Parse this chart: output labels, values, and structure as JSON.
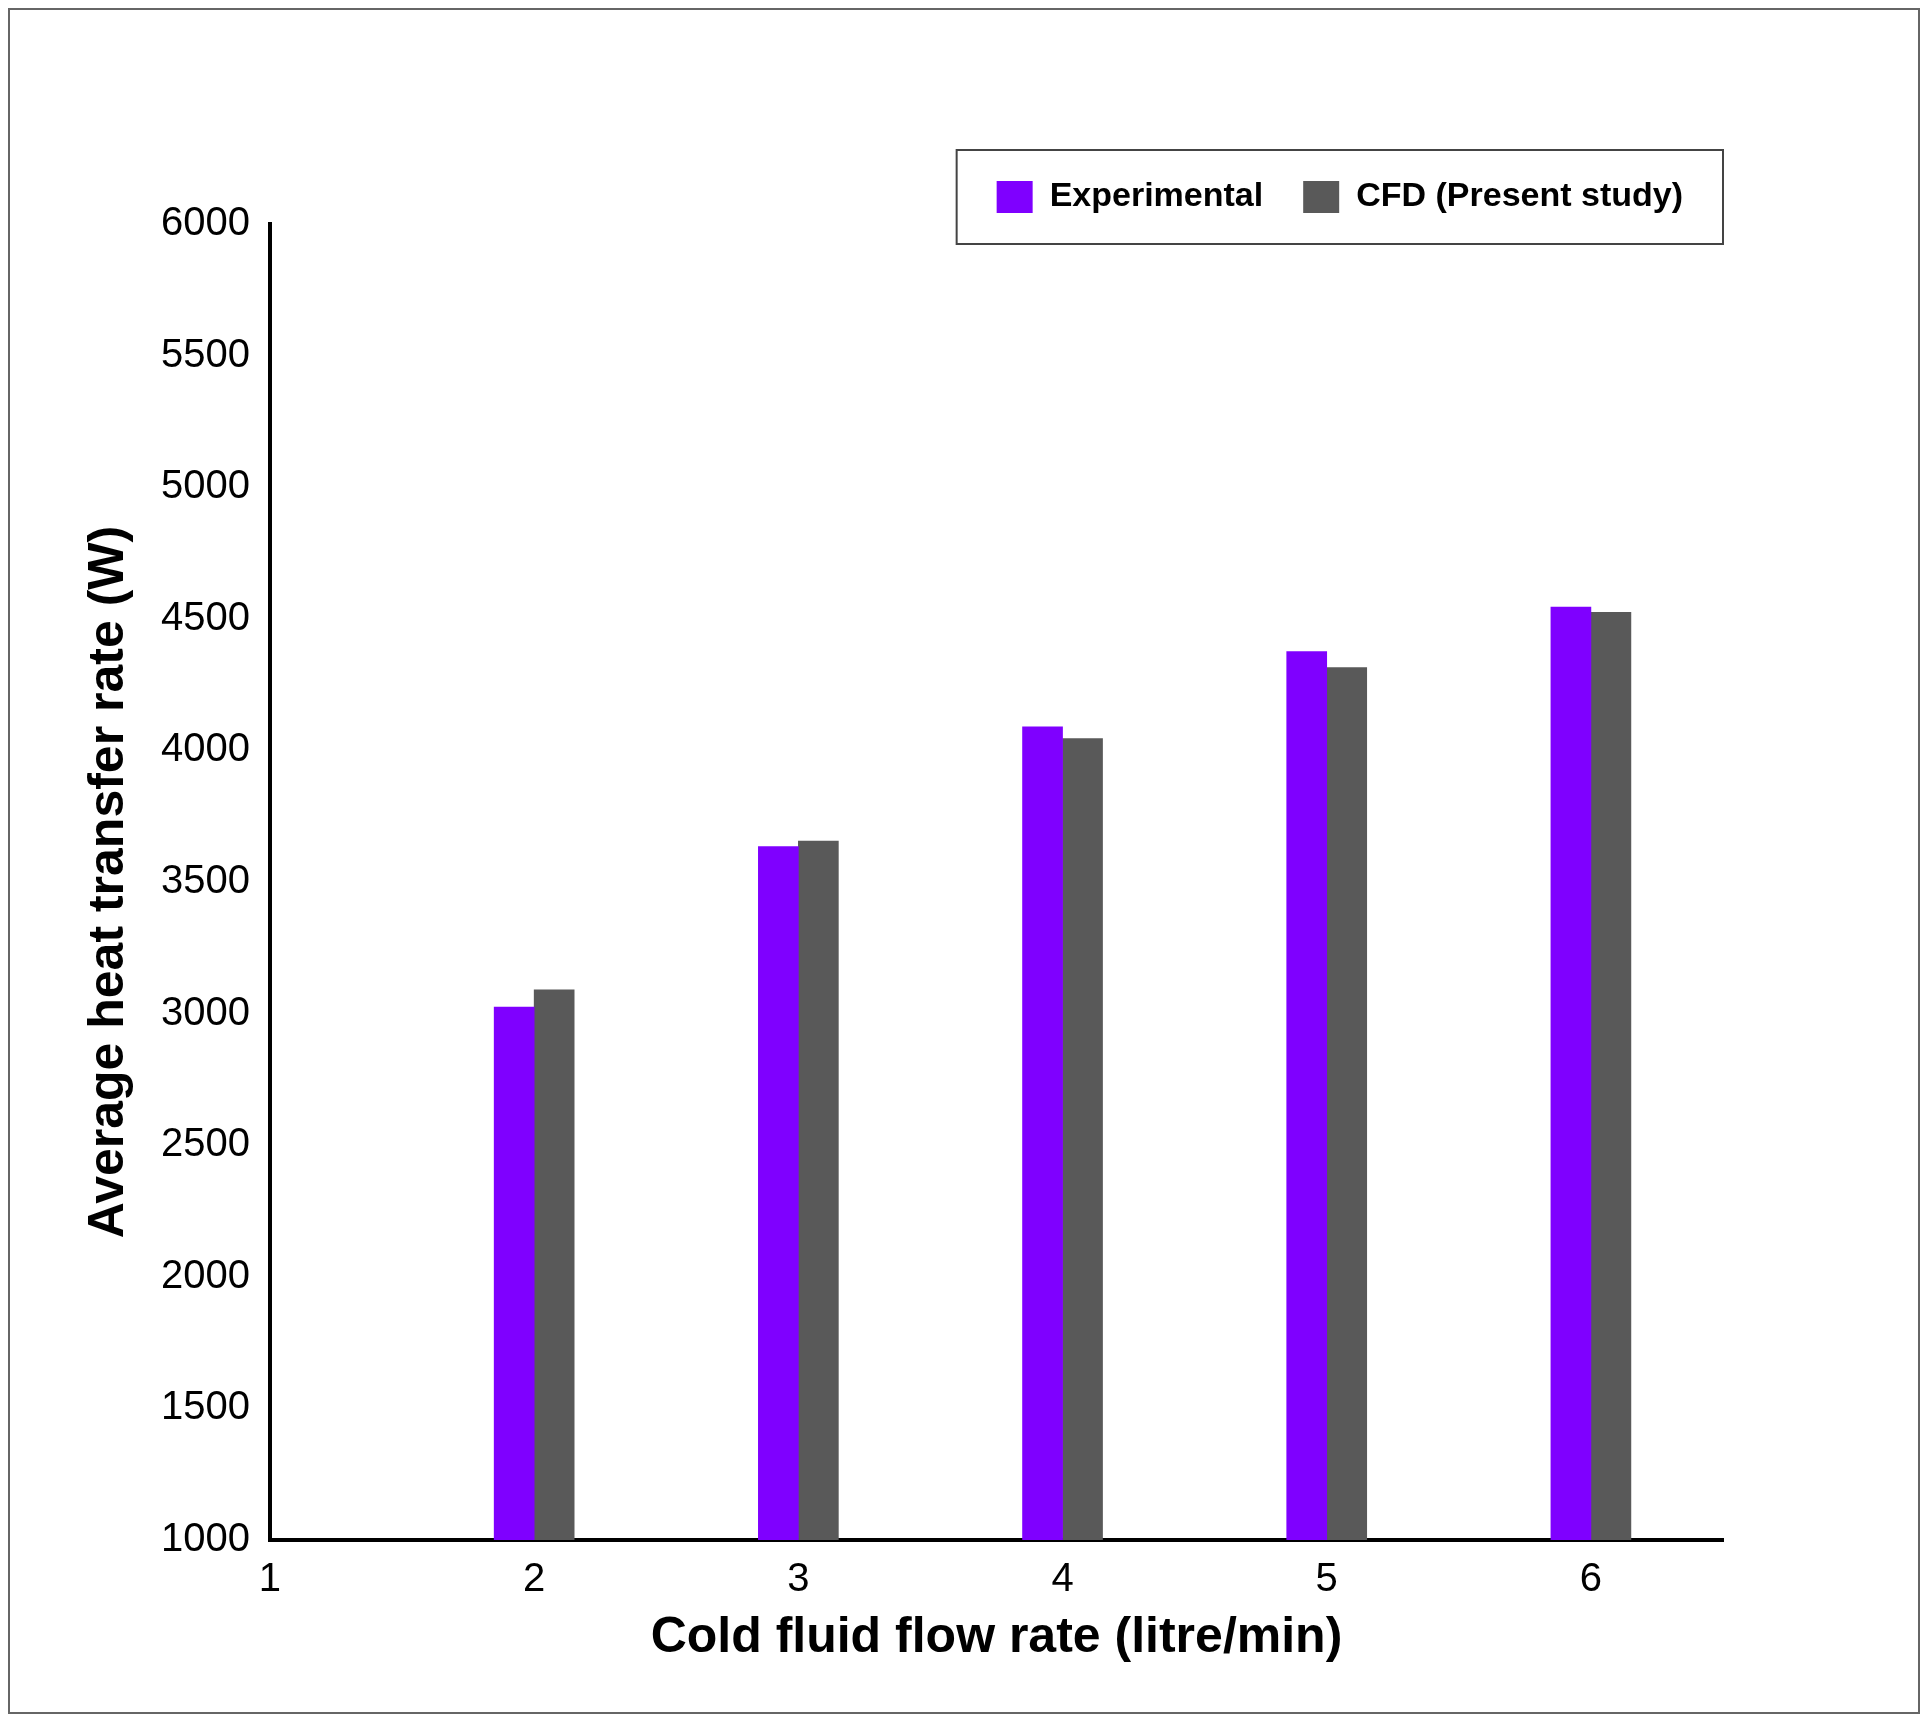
{
  "chart_data": {
    "type": "bar",
    "xlabel": "Cold fluid flow rate (litre/min)",
    "ylabel": "Average heat transfer rate (W)",
    "x": [
      2,
      3,
      4,
      5,
      6
    ],
    "series": [
      {
        "name": "Experimental",
        "color": "#7f00ff",
        "values": [
          3025,
          3635,
          4090,
          4375,
          4545
        ]
      },
      {
        "name": "CFD (Present study)",
        "color": "#595959",
        "values": [
          3090,
          3655,
          4045,
          4315,
          4525
        ]
      }
    ],
    "xlim": [
      1,
      6.5
    ],
    "xticks": [
      1,
      2,
      3,
      4,
      5,
      6
    ],
    "ylim": [
      1000,
      6000
    ],
    "yticks": [
      1000,
      1500,
      2000,
      2500,
      3000,
      3500,
      4000,
      4500,
      5000,
      5500,
      6000
    ],
    "grid": false,
    "legend": "top right"
  }
}
